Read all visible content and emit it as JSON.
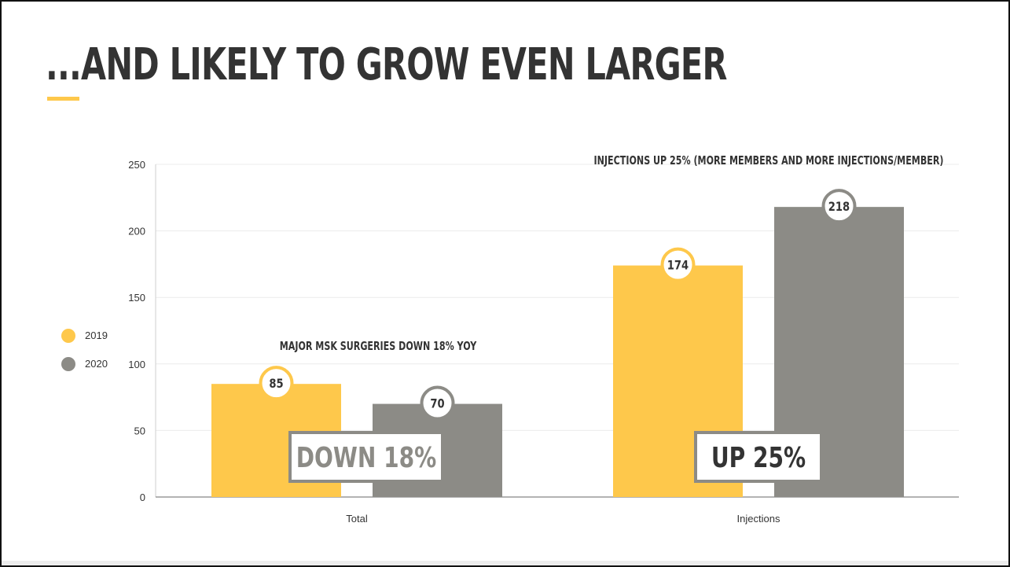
{
  "slide": {
    "title": "...AND LIKELY TO GROW EVEN LARGER"
  },
  "colors": {
    "accent": "#FEC84B",
    "series_2019": "#FEC84B",
    "series_2020": "#8C8B86",
    "title_text": "#333333",
    "callout_border": "#8C8B86"
  },
  "chart_data": {
    "type": "bar",
    "categories": [
      "Total",
      "Injections"
    ],
    "series": [
      {
        "name": "2019",
        "values": [
          85,
          174
        ]
      },
      {
        "name": "2020",
        "values": [
          70,
          218
        ]
      }
    ],
    "ylim": [
      0,
      250
    ],
    "yticks": [
      0,
      50,
      100,
      150,
      200,
      250
    ],
    "grid": true,
    "legend_position": "left",
    "data_labels": true,
    "annotations": [
      "MAJOR MSK SURGERIES DOWN 18% YOY",
      "INJECTIONS UP 25% (MORE MEMBERS AND MORE INJECTIONS/MEMBER)"
    ],
    "callouts": [
      "DOWN 18%",
      "UP 25%"
    ]
  }
}
